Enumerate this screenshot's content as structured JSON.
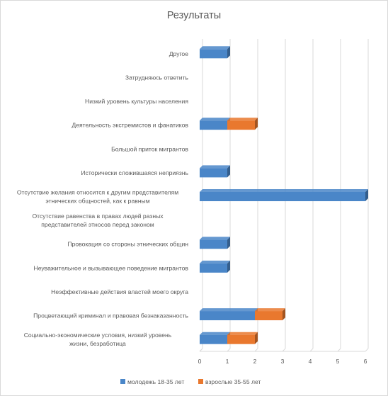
{
  "chart_data": {
    "type": "bar",
    "orientation": "horizontal",
    "stacked": true,
    "title": "Результаты",
    "categories": [
      "Другое",
      "Затрудняюсь ответить",
      "Низкий уровень культуры населения",
      "Деятельность экстремистов и фанатиков",
      "Большой приток мигрантов",
      "Исторически сложившаяся неприязнь",
      "Отсутствие желания относится к другим представителям этнических общностей, как к равным",
      "Отсутствие равенства в правах людей разных представителей этносов перед законом",
      "Провокация со стороны этнических общин",
      "Неуважительное и вызывающее поведение мигрантов",
      "Неэффективные действия властей моего округа",
      "Процветающий криминал и правовая безнаказанность",
      "Социально-экономические условия, низкий уровень жизни, безработица"
    ],
    "series": [
      {
        "name": "молодежь 18-35 лет",
        "color": "#4a86c8",
        "values": [
          1,
          0,
          0,
          1,
          0,
          1,
          6,
          0,
          1,
          1,
          0,
          2,
          1
        ]
      },
      {
        "name": "взрослые 35-55 лет",
        "color": "#e9782e",
        "values": [
          0,
          0,
          0,
          1,
          0,
          0,
          0,
          0,
          0,
          0,
          0,
          1,
          1
        ]
      }
    ],
    "xlim": [
      0,
      6
    ],
    "xticks": [
      "0",
      "1",
      "2",
      "3",
      "4",
      "5",
      "6"
    ],
    "gridlines": true,
    "legend_position": "bottom",
    "style": "3d"
  }
}
